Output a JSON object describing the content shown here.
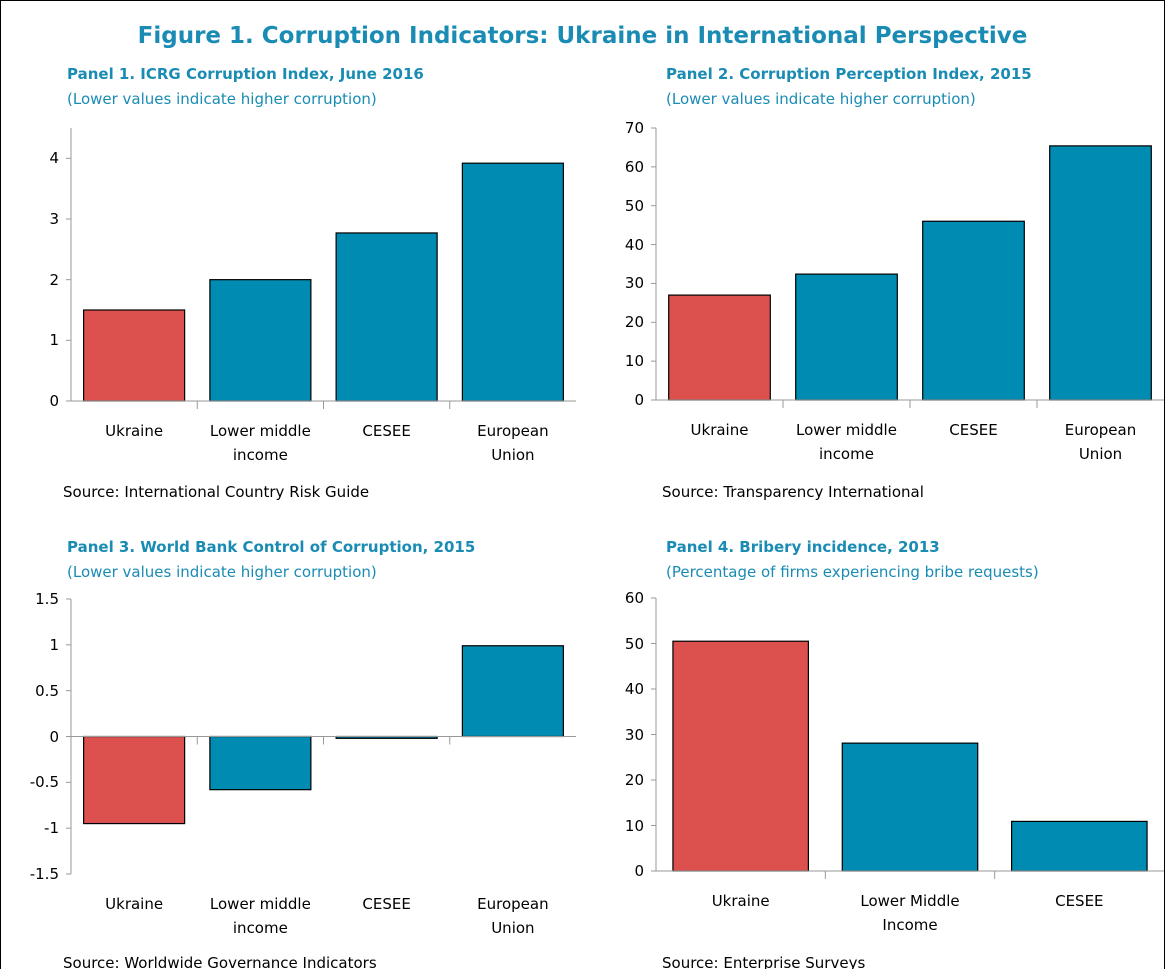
{
  "title": "Figure 1. Corruption Indicators: Ukraine in International Perspective",
  "chart_data": [
    {
      "type": "bar",
      "title": "Panel 1. ICRG Corruption Index, June 2016",
      "subtitle": "(Lower values indicate higher corruption)",
      "categories": [
        "Ukraine",
        "Lower middle income",
        "CESEE",
        "European Union"
      ],
      "values": [
        1.5,
        2.0,
        2.77,
        3.92
      ],
      "colors": [
        "#dc504d",
        "#008cb2",
        "#008cb2",
        "#008cb2"
      ],
      "ylim": [
        0,
        4.5
      ],
      "yticks": [
        0,
        1,
        2,
        3,
        4
      ],
      "source": "Source: International Country Risk Guide"
    },
    {
      "type": "bar",
      "title": "Panel 2. Corruption Perception Index, 2015",
      "subtitle": "(Lower values indicate higher corruption)",
      "categories": [
        "Ukraine",
        "Lower middle income",
        "CESEE",
        "European Union"
      ],
      "values": [
        27,
        32.4,
        46,
        65.4
      ],
      "colors": [
        "#dc504d",
        "#008cb2",
        "#008cb2",
        "#008cb2"
      ],
      "ylim": [
        0,
        70
      ],
      "yticks": [
        0,
        10,
        20,
        30,
        40,
        50,
        60,
        70
      ],
      "source": "Source: Transparency International"
    },
    {
      "type": "bar",
      "title": "Panel 3. World Bank Control of Corruption, 2015",
      "subtitle": "(Lower values indicate higher corruption)",
      "categories": [
        "Ukraine",
        "Lower middle income",
        "CESEE",
        "European Union"
      ],
      "values": [
        -0.95,
        -0.58,
        -0.02,
        0.99
      ],
      "colors": [
        "#dc504d",
        "#008cb2",
        "#008cb2",
        "#008cb2"
      ],
      "ylim": [
        -1.5,
        1.5
      ],
      "yticks": [
        -1.5,
        -1,
        -0.5,
        0,
        0.5,
        1,
        1.5
      ],
      "source": "Source: Worldwide Governance Indicators"
    },
    {
      "type": "bar",
      "title": "Panel 4. Bribery incidence, 2013",
      "subtitle": "(Percentage of firms experiencing bribe requests)",
      "categories": [
        "Ukraine",
        "Lower Middle Income",
        "CESEE"
      ],
      "values": [
        50.5,
        28.1,
        10.9
      ],
      "colors": [
        "#dc504d",
        "#008cb2",
        "#008cb2"
      ],
      "ylim": [
        0,
        60
      ],
      "yticks": [
        0,
        10,
        20,
        30,
        40,
        50,
        60
      ],
      "source": "Source: Enterprise Surveys"
    }
  ]
}
